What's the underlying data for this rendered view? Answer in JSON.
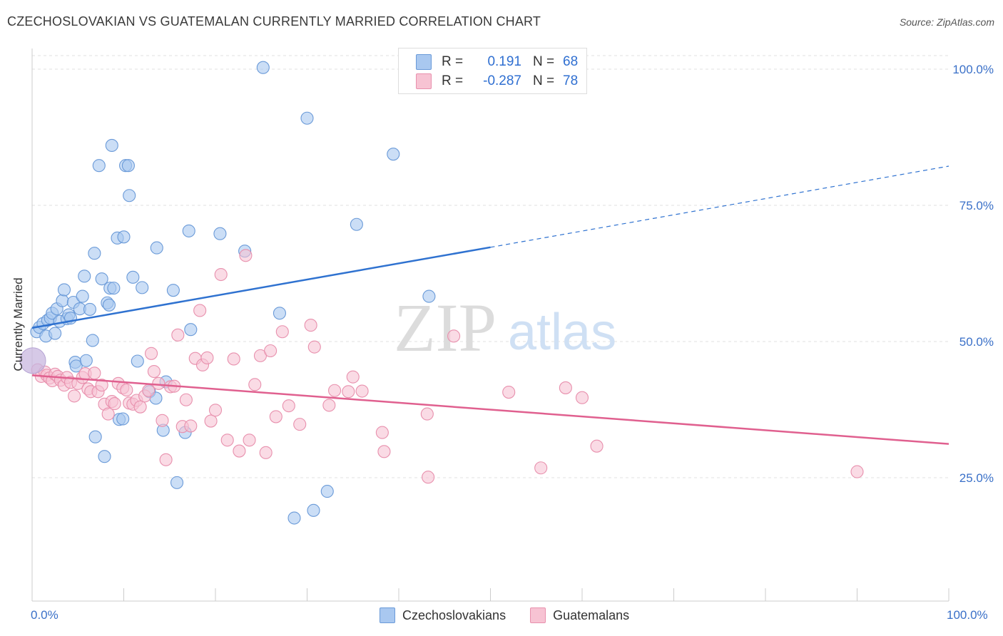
{
  "title": "CZECHOSLOVAKIAN VS GUATEMALAN CURRENTLY MARRIED CORRELATION CHART",
  "source": "Source: ZipAtlas.com",
  "watermark": {
    "zip": "ZIP",
    "atlas": "atlas"
  },
  "legend": {
    "rows": [
      {
        "r_label": "R =",
        "r_value": "0.191",
        "n_label": "N =",
        "n_value": "68",
        "color": "#a9c8f0",
        "border": "#6a9ad8"
      },
      {
        "r_label": "R =",
        "r_value": "-0.287",
        "n_label": "N =",
        "n_value": "78",
        "color": "#f7c3d3",
        "border": "#e890ad"
      }
    ]
  },
  "colors": {
    "blue_fill": "#a9c8f0",
    "blue_stroke": "#6a9ad8",
    "blue_line": "#2f72d0",
    "pink_fill": "#f7c3d3",
    "pink_stroke": "#e890ad",
    "pink_line": "#e0608f",
    "tick_label": "#3a70c8",
    "grid": "#e2e2e2"
  },
  "chart_data": {
    "type": "scatter",
    "title": "CZECHOSLOVAKIAN VS GUATEMALAN CURRENTLY MARRIED CORRELATION CHART",
    "xlabel": "",
    "ylabel": "Currently Married",
    "xlim": [
      0,
      100
    ],
    "ylim": [
      0,
      100
    ],
    "x_tick_labels": [
      "0.0%",
      "100.0%"
    ],
    "y_ticks": [
      25,
      50,
      75,
      100
    ],
    "y_tick_labels": [
      "25.0%",
      "50.0%",
      "75.0%",
      "100.0%"
    ],
    "grid": true,
    "legend_position": "bottom",
    "series": [
      {
        "name": "Czechoslovakians",
        "color": "#a9c8f0",
        "trend": {
          "x0": 0,
          "y0": 52.5,
          "x1": 50,
          "y1": 67.3,
          "x_dash_end": 100,
          "y_dash_end": 82.2
        },
        "points": [
          [
            0.5,
            51.8
          ],
          [
            0.8,
            52.6
          ],
          [
            1.2,
            53.3
          ],
          [
            1.5,
            51.0
          ],
          [
            1.7,
            53.9
          ],
          [
            2.0,
            54.3
          ],
          [
            2.2,
            55.2
          ],
          [
            2.5,
            51.5
          ],
          [
            2.7,
            56.0
          ],
          [
            3.0,
            53.7
          ],
          [
            3.3,
            57.5
          ],
          [
            3.5,
            59.5
          ],
          [
            3.8,
            54.2
          ],
          [
            4.0,
            54.9
          ],
          [
            4.2,
            54.3
          ],
          [
            4.5,
            57.2
          ],
          [
            4.7,
            46.2
          ],
          [
            4.8,
            45.5
          ],
          [
            5.2,
            56.0
          ],
          [
            5.5,
            58.3
          ],
          [
            5.7,
            62.0
          ],
          [
            5.9,
            46.5
          ],
          [
            6.3,
            55.9
          ],
          [
            6.6,
            50.2
          ],
          [
            6.8,
            66.2
          ],
          [
            6.9,
            32.5
          ],
          [
            7.3,
            82.3
          ],
          [
            7.6,
            61.5
          ],
          [
            7.9,
            28.9
          ],
          [
            8.2,
            57.1
          ],
          [
            8.4,
            56.7
          ],
          [
            8.5,
            59.8
          ],
          [
            8.7,
            86.0
          ],
          [
            8.9,
            59.8
          ],
          [
            9.3,
            69.0
          ],
          [
            9.5,
            35.7
          ],
          [
            9.9,
            35.8
          ],
          [
            10.0,
            69.2
          ],
          [
            10.2,
            82.3
          ],
          [
            10.5,
            82.3
          ],
          [
            10.6,
            76.8
          ],
          [
            11.0,
            61.8
          ],
          [
            11.5,
            46.4
          ],
          [
            12.0,
            59.9
          ],
          [
            12.8,
            40.8
          ],
          [
            13.5,
            39.6
          ],
          [
            13.6,
            67.2
          ],
          [
            14.3,
            33.7
          ],
          [
            14.6,
            42.6
          ],
          [
            15.4,
            59.4
          ],
          [
            15.8,
            24.1
          ],
          [
            16.7,
            33.3
          ],
          [
            17.1,
            70.3
          ],
          [
            17.3,
            52.2
          ],
          [
            20.5,
            69.8
          ],
          [
            23.2,
            66.6
          ],
          [
            25.2,
            100.3
          ],
          [
            27.0,
            55.2
          ],
          [
            28.6,
            17.6
          ],
          [
            30.0,
            91.0
          ],
          [
            30.7,
            19.0
          ],
          [
            32.2,
            22.5
          ],
          [
            35.4,
            71.5
          ],
          [
            39.4,
            84.4
          ],
          [
            43.3,
            58.3
          ],
          [
            48.5,
            100.0
          ]
        ]
      },
      {
        "name": "Guatemalans",
        "color": "#f7c3d3",
        "trend": {
          "x0": 0,
          "y0": 43.8,
          "x1": 100,
          "y1": 31.2
        },
        "points": [
          [
            0.6,
            44.8
          ],
          [
            1.0,
            43.6
          ],
          [
            1.4,
            44.4
          ],
          [
            1.6,
            43.8
          ],
          [
            1.9,
            43.3
          ],
          [
            2.2,
            42.8
          ],
          [
            2.5,
            44.0
          ],
          [
            2.8,
            43.6
          ],
          [
            3.1,
            42.9
          ],
          [
            3.5,
            42.0
          ],
          [
            3.8,
            43.4
          ],
          [
            4.2,
            42.5
          ],
          [
            4.6,
            40.0
          ],
          [
            5.0,
            42.3
          ],
          [
            5.5,
            43.4
          ],
          [
            5.8,
            44.1
          ],
          [
            6.1,
            41.3
          ],
          [
            6.4,
            40.8
          ],
          [
            6.8,
            44.2
          ],
          [
            7.2,
            40.8
          ],
          [
            7.6,
            42.0
          ],
          [
            7.9,
            38.5
          ],
          [
            8.3,
            36.7
          ],
          [
            8.7,
            39.0
          ],
          [
            9.0,
            38.6
          ],
          [
            9.4,
            42.3
          ],
          [
            9.9,
            41.5
          ],
          [
            10.3,
            41.1
          ],
          [
            10.6,
            38.7
          ],
          [
            11.0,
            38.5
          ],
          [
            11.4,
            39.2
          ],
          [
            11.8,
            38.0
          ],
          [
            12.3,
            40.0
          ],
          [
            12.7,
            41.0
          ],
          [
            13.0,
            47.8
          ],
          [
            13.3,
            44.5
          ],
          [
            13.8,
            42.3
          ],
          [
            14.2,
            35.5
          ],
          [
            14.6,
            28.3
          ],
          [
            15.1,
            41.7
          ],
          [
            15.5,
            41.8
          ],
          [
            15.9,
            51.2
          ],
          [
            16.4,
            34.4
          ],
          [
            16.8,
            39.3
          ],
          [
            17.3,
            34.5
          ],
          [
            17.8,
            46.9
          ],
          [
            18.3,
            55.7
          ],
          [
            18.6,
            45.7
          ],
          [
            19.1,
            47.0
          ],
          [
            19.5,
            35.4
          ],
          [
            20.0,
            37.4
          ],
          [
            20.6,
            62.3
          ],
          [
            21.3,
            31.9
          ],
          [
            22.0,
            46.8
          ],
          [
            22.6,
            29.9
          ],
          [
            23.3,
            65.8
          ],
          [
            23.7,
            31.9
          ],
          [
            24.3,
            42.1
          ],
          [
            24.9,
            47.4
          ],
          [
            25.5,
            29.6
          ],
          [
            26.0,
            48.3
          ],
          [
            26.6,
            36.2
          ],
          [
            27.3,
            51.8
          ],
          [
            28.0,
            38.2
          ],
          [
            29.2,
            34.8
          ],
          [
            30.4,
            53.0
          ],
          [
            30.8,
            49.0
          ],
          [
            32.4,
            38.3
          ],
          [
            33.0,
            41.0
          ],
          [
            34.5,
            40.8
          ],
          [
            35.0,
            43.5
          ],
          [
            36.0,
            40.9
          ],
          [
            38.2,
            33.3
          ],
          [
            38.4,
            29.8
          ],
          [
            43.1,
            36.7
          ],
          [
            43.2,
            25.1
          ],
          [
            46.0,
            51.0
          ],
          [
            52.0,
            40.7
          ],
          [
            55.5,
            26.8
          ],
          [
            58.2,
            41.5
          ],
          [
            60.0,
            39.7
          ],
          [
            61.6,
            30.8
          ],
          [
            90.0,
            26.1
          ]
        ]
      }
    ]
  }
}
